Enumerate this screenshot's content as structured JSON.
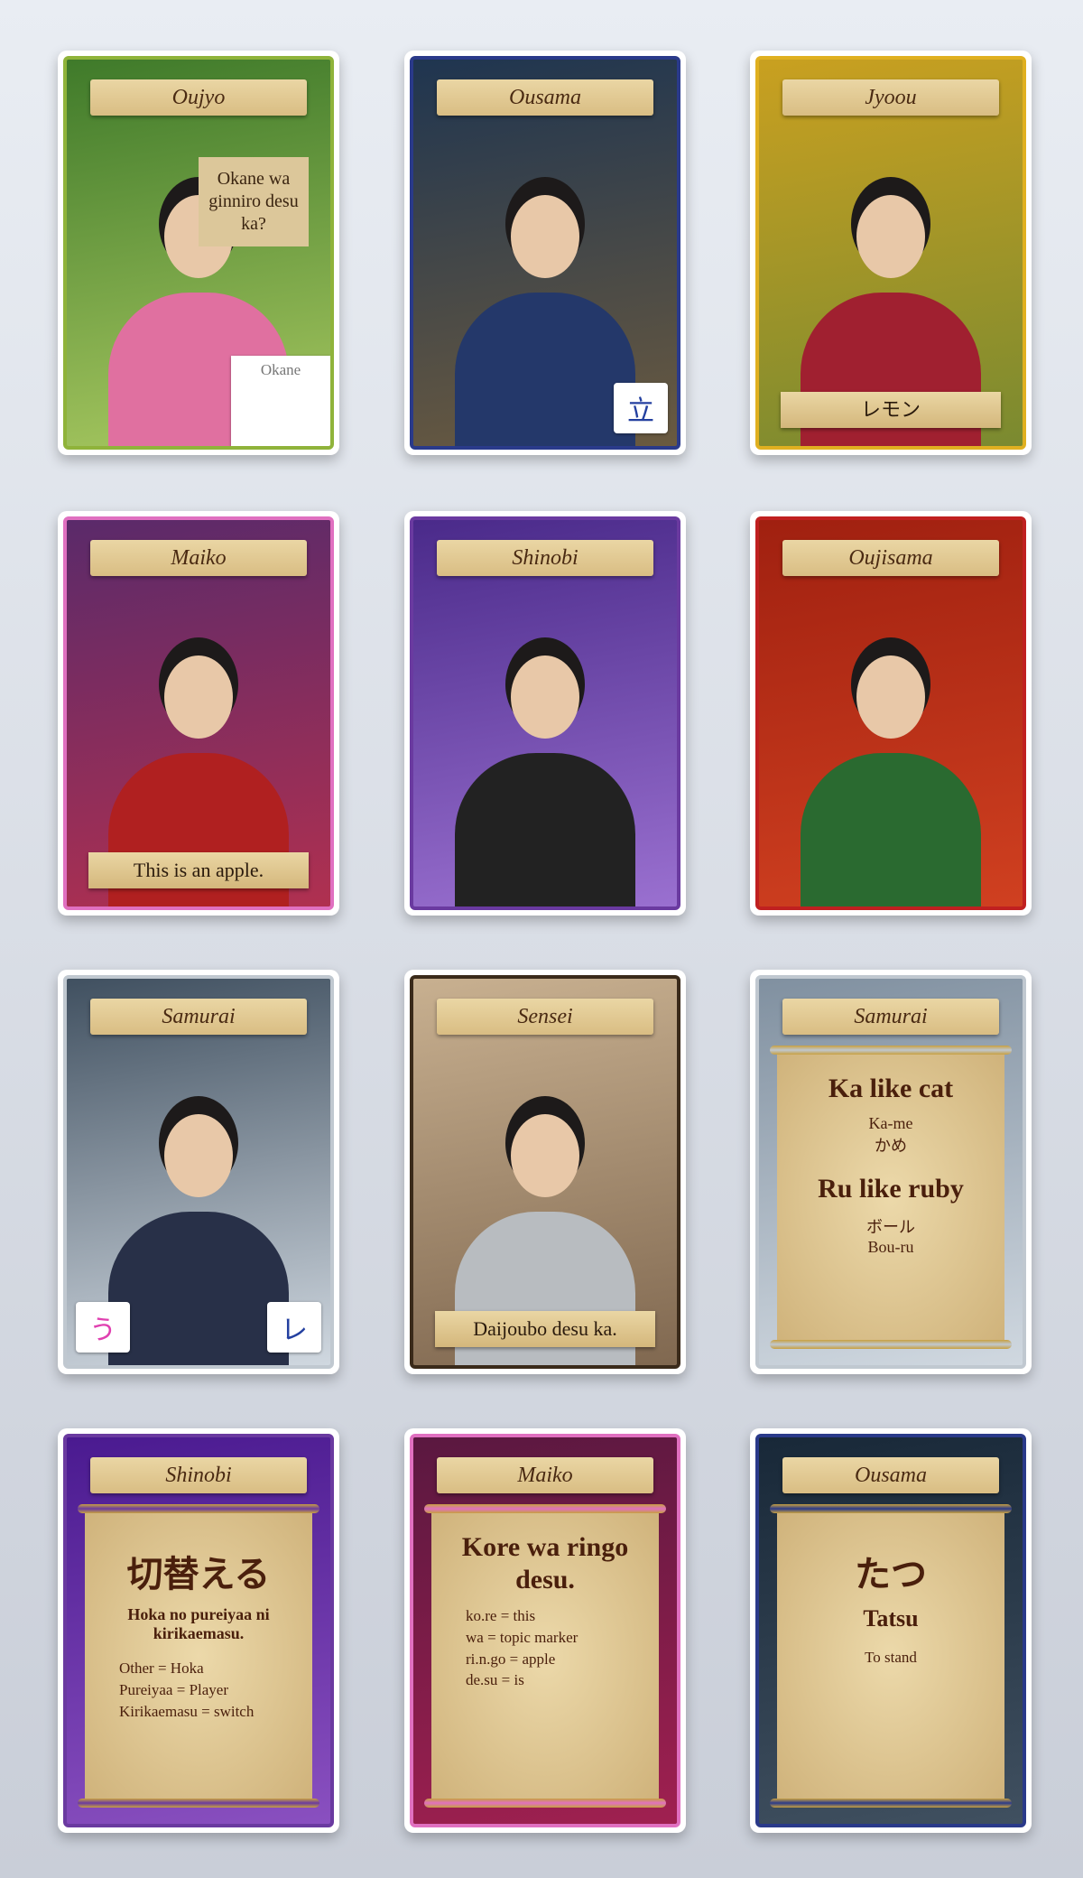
{
  "cards": [
    {
      "title": "Oujyo",
      "speech": "Okane wa ginniro desu ka?",
      "badges": [
        "Okane"
      ]
    },
    {
      "title": "Ousama",
      "badges": [
        "立"
      ]
    },
    {
      "title": "Jyoou",
      "caption": "レモン"
    },
    {
      "title": "Maiko",
      "caption": "This is an apple."
    },
    {
      "title": "Shinobi"
    },
    {
      "title": "Oujisama"
    },
    {
      "title": "Samurai",
      "badges": [
        "う",
        "レ"
      ]
    },
    {
      "title": "Sensei",
      "caption": "Daijoubo desu ka."
    },
    {
      "title": "Samurai",
      "scroll": {
        "sections": [
          {
            "heading": "Ka like cat",
            "romaji": "Ka-me",
            "kana": "かめ"
          },
          {
            "heading": "Ru like ruby",
            "kana": "ボール",
            "romaji": "Bou-ru"
          }
        ]
      }
    },
    {
      "title": "Shinobi",
      "scroll": {
        "heading": "切替える",
        "subheading": "Hoka no pureiyaa ni kirikaemasu.",
        "lines": [
          "Other = Hoka",
          "Pureiyaa = Player",
          "Kirikaemasu = switch"
        ]
      }
    },
    {
      "title": "Maiko",
      "scroll": {
        "heading": "Kore wa ringo desu.",
        "lines": [
          "ko.re = this",
          "wa = topic marker",
          "ri.n.go = apple",
          "de.su = is"
        ]
      }
    },
    {
      "title": "Ousama",
      "scroll": {
        "heading": "たつ",
        "subheading": "Tatsu",
        "lines": [
          "To stand"
        ]
      }
    }
  ]
}
